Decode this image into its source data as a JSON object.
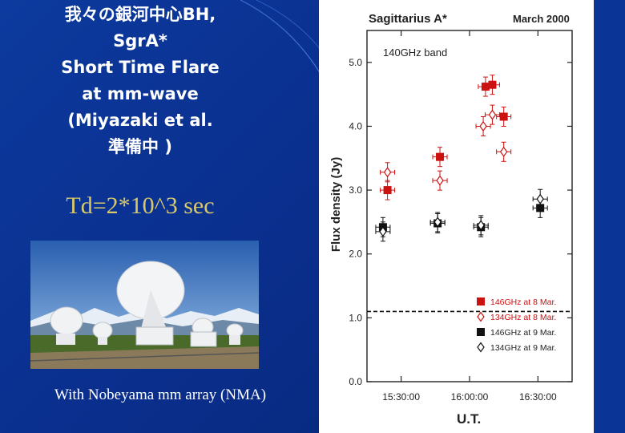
{
  "slide": {
    "title_lines": [
      "我々の銀河中心BH,",
      "SgrA*",
      "Short Time Flare",
      "at mm-wave",
      "(Miyazaki et al.",
      "準備中 )"
    ],
    "timescale_text": "Td=2*10^3 sec",
    "caption": "With Nobeyama mm array (NMA)",
    "colors": {
      "background": "#0a2f8e",
      "title": "#ffffff",
      "timescale": "#d8c96a"
    }
  },
  "chart_data": {
    "type": "scatter",
    "title": "Sagittarius A*",
    "date_label": "March 2000",
    "band_label": "140GHz band",
    "xlabel": "U.T.",
    "ylabel": "Flux density (Jy)",
    "x_ticks": [
      "15:30:00",
      "16:00:00",
      "16:30:00"
    ],
    "y_ticks": [
      "0.0",
      "1.0",
      "2.0",
      "3.0",
      "4.0",
      "5.0"
    ],
    "ylim": [
      0,
      5.5
    ],
    "xlim": [
      "15:15",
      "16:45"
    ],
    "reference_line": {
      "y": 1.1,
      "style": "dashed"
    },
    "series": [
      {
        "name": "146GHz at 8 Mar.",
        "color": "#cc1111",
        "marker": "filled-square",
        "points": [
          {
            "x": "15:24",
            "y": 3.0
          },
          {
            "x": "15:47",
            "y": 3.52
          },
          {
            "x": "16:07",
            "y": 4.62
          },
          {
            "x": "16:10",
            "y": 4.65
          },
          {
            "x": "16:15",
            "y": 4.15
          }
        ]
      },
      {
        "name": "134GHz at 8 Mar.",
        "color": "#cc1111",
        "marker": "open-diamond",
        "points": [
          {
            "x": "15:24",
            "y": 3.28
          },
          {
            "x": "15:47",
            "y": 3.15
          },
          {
            "x": "16:06",
            "y": 4.0
          },
          {
            "x": "16:10",
            "y": 4.18
          },
          {
            "x": "16:15",
            "y": 3.6
          }
        ]
      },
      {
        "name": "146GHz at 9 Mar.",
        "color": "#111111",
        "marker": "filled-square",
        "points": [
          {
            "x": "15:22",
            "y": 2.42
          },
          {
            "x": "15:46",
            "y": 2.48
          },
          {
            "x": "16:05",
            "y": 2.42
          },
          {
            "x": "16:31",
            "y": 2.72
          }
        ]
      },
      {
        "name": "134GHz at 9 Mar.",
        "color": "#111111",
        "marker": "open-diamond",
        "points": [
          {
            "x": "15:22",
            "y": 2.35
          },
          {
            "x": "15:46",
            "y": 2.5
          },
          {
            "x": "16:05",
            "y": 2.45
          },
          {
            "x": "16:31",
            "y": 2.86
          }
        ]
      }
    ],
    "legend_position": "bottom-right",
    "grid": false
  }
}
